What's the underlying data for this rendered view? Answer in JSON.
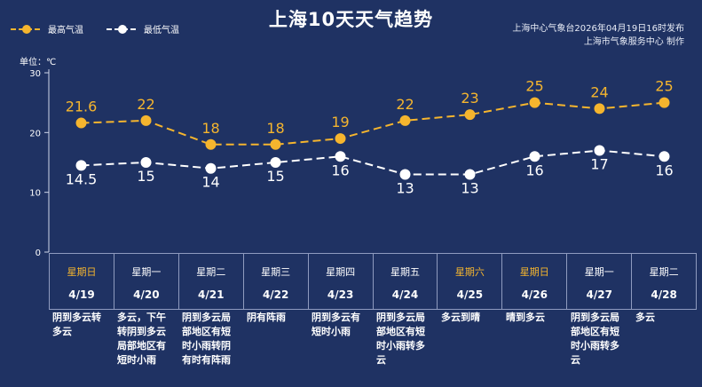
{
  "title": "上海10天天气趋势",
  "publisher": {
    "line1": "上海中心气象台2026年04月19日16时发布",
    "line2": "上海市气象服务中心  制作"
  },
  "legend": {
    "high": "最高气温",
    "low": "最低气温"
  },
  "unit": "单位：℃",
  "colors": {
    "background": "#1f3263",
    "high": "#f5b52e",
    "low": "#ffffff",
    "weekend": "#f5b52e"
  },
  "chart_data": {
    "type": "line",
    "ylim": [
      0,
      30
    ],
    "yticks": [
      0,
      10,
      20,
      30
    ],
    "categories": [
      "4/19",
      "4/20",
      "4/21",
      "4/22",
      "4/23",
      "4/24",
      "4/25",
      "4/26",
      "4/27",
      "4/28"
    ],
    "series": [
      {
        "name": "最高气温",
        "values": [
          21.6,
          22,
          18,
          18,
          19,
          22,
          23,
          25,
          24,
          25
        ]
      },
      {
        "name": "最低气温",
        "values": [
          14.5,
          15,
          14,
          15,
          16,
          13,
          13,
          16,
          17,
          16
        ]
      }
    ],
    "high_labels": [
      "21.6",
      "22",
      "18",
      "18",
      "19",
      "22",
      "23",
      "25",
      "24",
      "25"
    ],
    "low_labels": [
      "14.5",
      "15",
      "14",
      "15",
      "16",
      "13",
      "13",
      "16",
      "17",
      "16"
    ],
    "grid": false,
    "legend_position": "top-left"
  },
  "days": [
    {
      "weekday": "星期日",
      "date": "4/19",
      "weekend": true,
      "desc": "阴到多云转多云"
    },
    {
      "weekday": "星期一",
      "date": "4/20",
      "weekend": false,
      "desc": "多云，下午转阴到多云局部地区有短时小雨"
    },
    {
      "weekday": "星期二",
      "date": "4/21",
      "weekend": false,
      "desc": "阴到多云局部地区有短时小雨转阴有时有阵雨"
    },
    {
      "weekday": "星期三",
      "date": "4/22",
      "weekend": false,
      "desc": "阴有阵雨"
    },
    {
      "weekday": "星期四",
      "date": "4/23",
      "weekend": false,
      "desc": "阴到多云有短时小雨"
    },
    {
      "weekday": "星期五",
      "date": "4/24",
      "weekend": false,
      "desc": "阴到多云局部地区有短时小雨转多云"
    },
    {
      "weekday": "星期六",
      "date": "4/25",
      "weekend": true,
      "desc": "多云到晴"
    },
    {
      "weekday": "星期日",
      "date": "4/26",
      "weekend": true,
      "desc": "晴到多云"
    },
    {
      "weekday": "星期一",
      "date": "4/27",
      "weekend": false,
      "desc": "阴到多云局部地区有短时小雨转多云"
    },
    {
      "weekday": "星期二",
      "date": "4/28",
      "weekend": false,
      "desc": "多云"
    }
  ]
}
